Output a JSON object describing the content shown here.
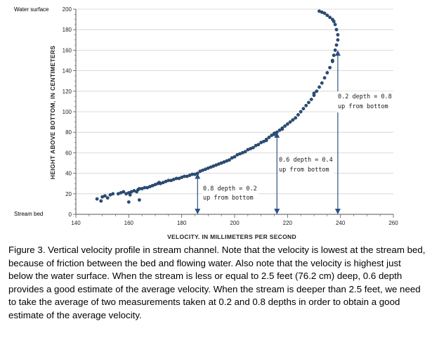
{
  "chart_data": {
    "type": "scatter",
    "ylabel": "HEIGHT ABOVE BOTTOM, IN CENTIMETERS",
    "xlabel": "VELOCITY, IN MILLIMETERS PER SECOND",
    "xlim": [
      140,
      260
    ],
    "ylim": [
      0,
      200
    ],
    "x_ticks": [
      "140",
      "160",
      "180",
      "200",
      "220",
      "240",
      "260"
    ],
    "y_ticks": [
      "0",
      "20",
      "40",
      "60",
      "80",
      "100",
      "120",
      "140",
      "160",
      "180",
      "200"
    ],
    "top_label": "Water surface",
    "bottom_label": "Stream bed",
    "grid": true,
    "x": [
      148,
      149.5,
      150,
      151,
      152,
      153,
      154,
      156,
      157,
      158,
      159,
      160,
      160.5,
      161,
      162,
      163,
      163.5,
      164,
      165,
      166,
      167,
      168,
      169,
      170,
      171,
      171.5,
      172,
      173,
      174,
      175,
      176,
      177,
      178,
      179,
      180,
      181,
      182,
      183,
      184,
      185,
      186,
      187,
      188,
      189,
      190,
      191,
      192,
      193,
      194,
      195,
      196,
      197,
      198,
      199,
      200,
      201,
      202,
      203,
      204,
      205,
      206,
      207,
      208,
      209,
      210,
      211,
      212,
      213,
      214,
      215,
      216,
      217,
      218,
      219,
      220,
      221,
      222,
      223,
      224,
      225,
      226,
      227,
      228,
      229,
      230,
      231,
      232,
      233,
      234,
      235,
      236,
      237,
      237.5,
      238,
      238.5,
      239,
      239,
      238.5,
      238,
      237.5,
      237,
      236,
      235,
      234,
      233,
      232,
      160,
      164,
      212,
      215,
      218,
      230,
      237
    ],
    "y": [
      15,
      13,
      17,
      18,
      16,
      19,
      20,
      20,
      21,
      22,
      20,
      21,
      19,
      22,
      23,
      22,
      24,
      25,
      25,
      26,
      26,
      27,
      28,
      29,
      30,
      31,
      30,
      31,
      32,
      33,
      33,
      34,
      35,
      35,
      36,
      37,
      37,
      38,
      39,
      39,
      40,
      42,
      43,
      44,
      45,
      46,
      47,
      48,
      49,
      50,
      51,
      52,
      53,
      55,
      56,
      58,
      59,
      60,
      61,
      63,
      64,
      65,
      67,
      68,
      70,
      71,
      73,
      75,
      77,
      79,
      80,
      82,
      84,
      86,
      88,
      90,
      92,
      94,
      97,
      100,
      103,
      106,
      109,
      112,
      116,
      120,
      124,
      128,
      133,
      138,
      143,
      149,
      155,
      160,
      165,
      170,
      175,
      180,
      185,
      188,
      190,
      192,
      194,
      196,
      197,
      198,
      12,
      14,
      72,
      78,
      83,
      118,
      150
    ]
  },
  "annotations": [
    {
      "text1": "0.8 depth = 0.2",
      "text2": "up from bottom"
    },
    {
      "text1": "0.6 depth = 0.4",
      "text2": "up from bottom"
    },
    {
      "text1": "0.2 depth = 0.8",
      "text2": "up from bottom"
    }
  ],
  "annotation_lines": [
    {
      "x": 186,
      "y": 40
    },
    {
      "x": 216,
      "y": 80
    },
    {
      "x": 239,
      "y": 160
    }
  ],
  "colors": {
    "points": "#2b4e78",
    "point_stroke": "#1d3a5c",
    "arrow": "#2e4f86",
    "grid": "#d0d0d0",
    "axis": "#555555"
  },
  "caption": "Figure 3. Vertical velocity profile in stream channel. Note that the velocity is lowest at the stream bed, because of friction between the bed and flowing water. Also note that the velocity is highest just below the water surface. When the stream is less or equal to 2.5 feet (76.2 cm) deep, 0.6 depth provides a good estimate of the average velocity. When the stream is deeper than 2.5 feet, we need to take the average of two measurements taken at 0.2 and 0.8 depths in order to obtain a good estimate of the average velocity."
}
